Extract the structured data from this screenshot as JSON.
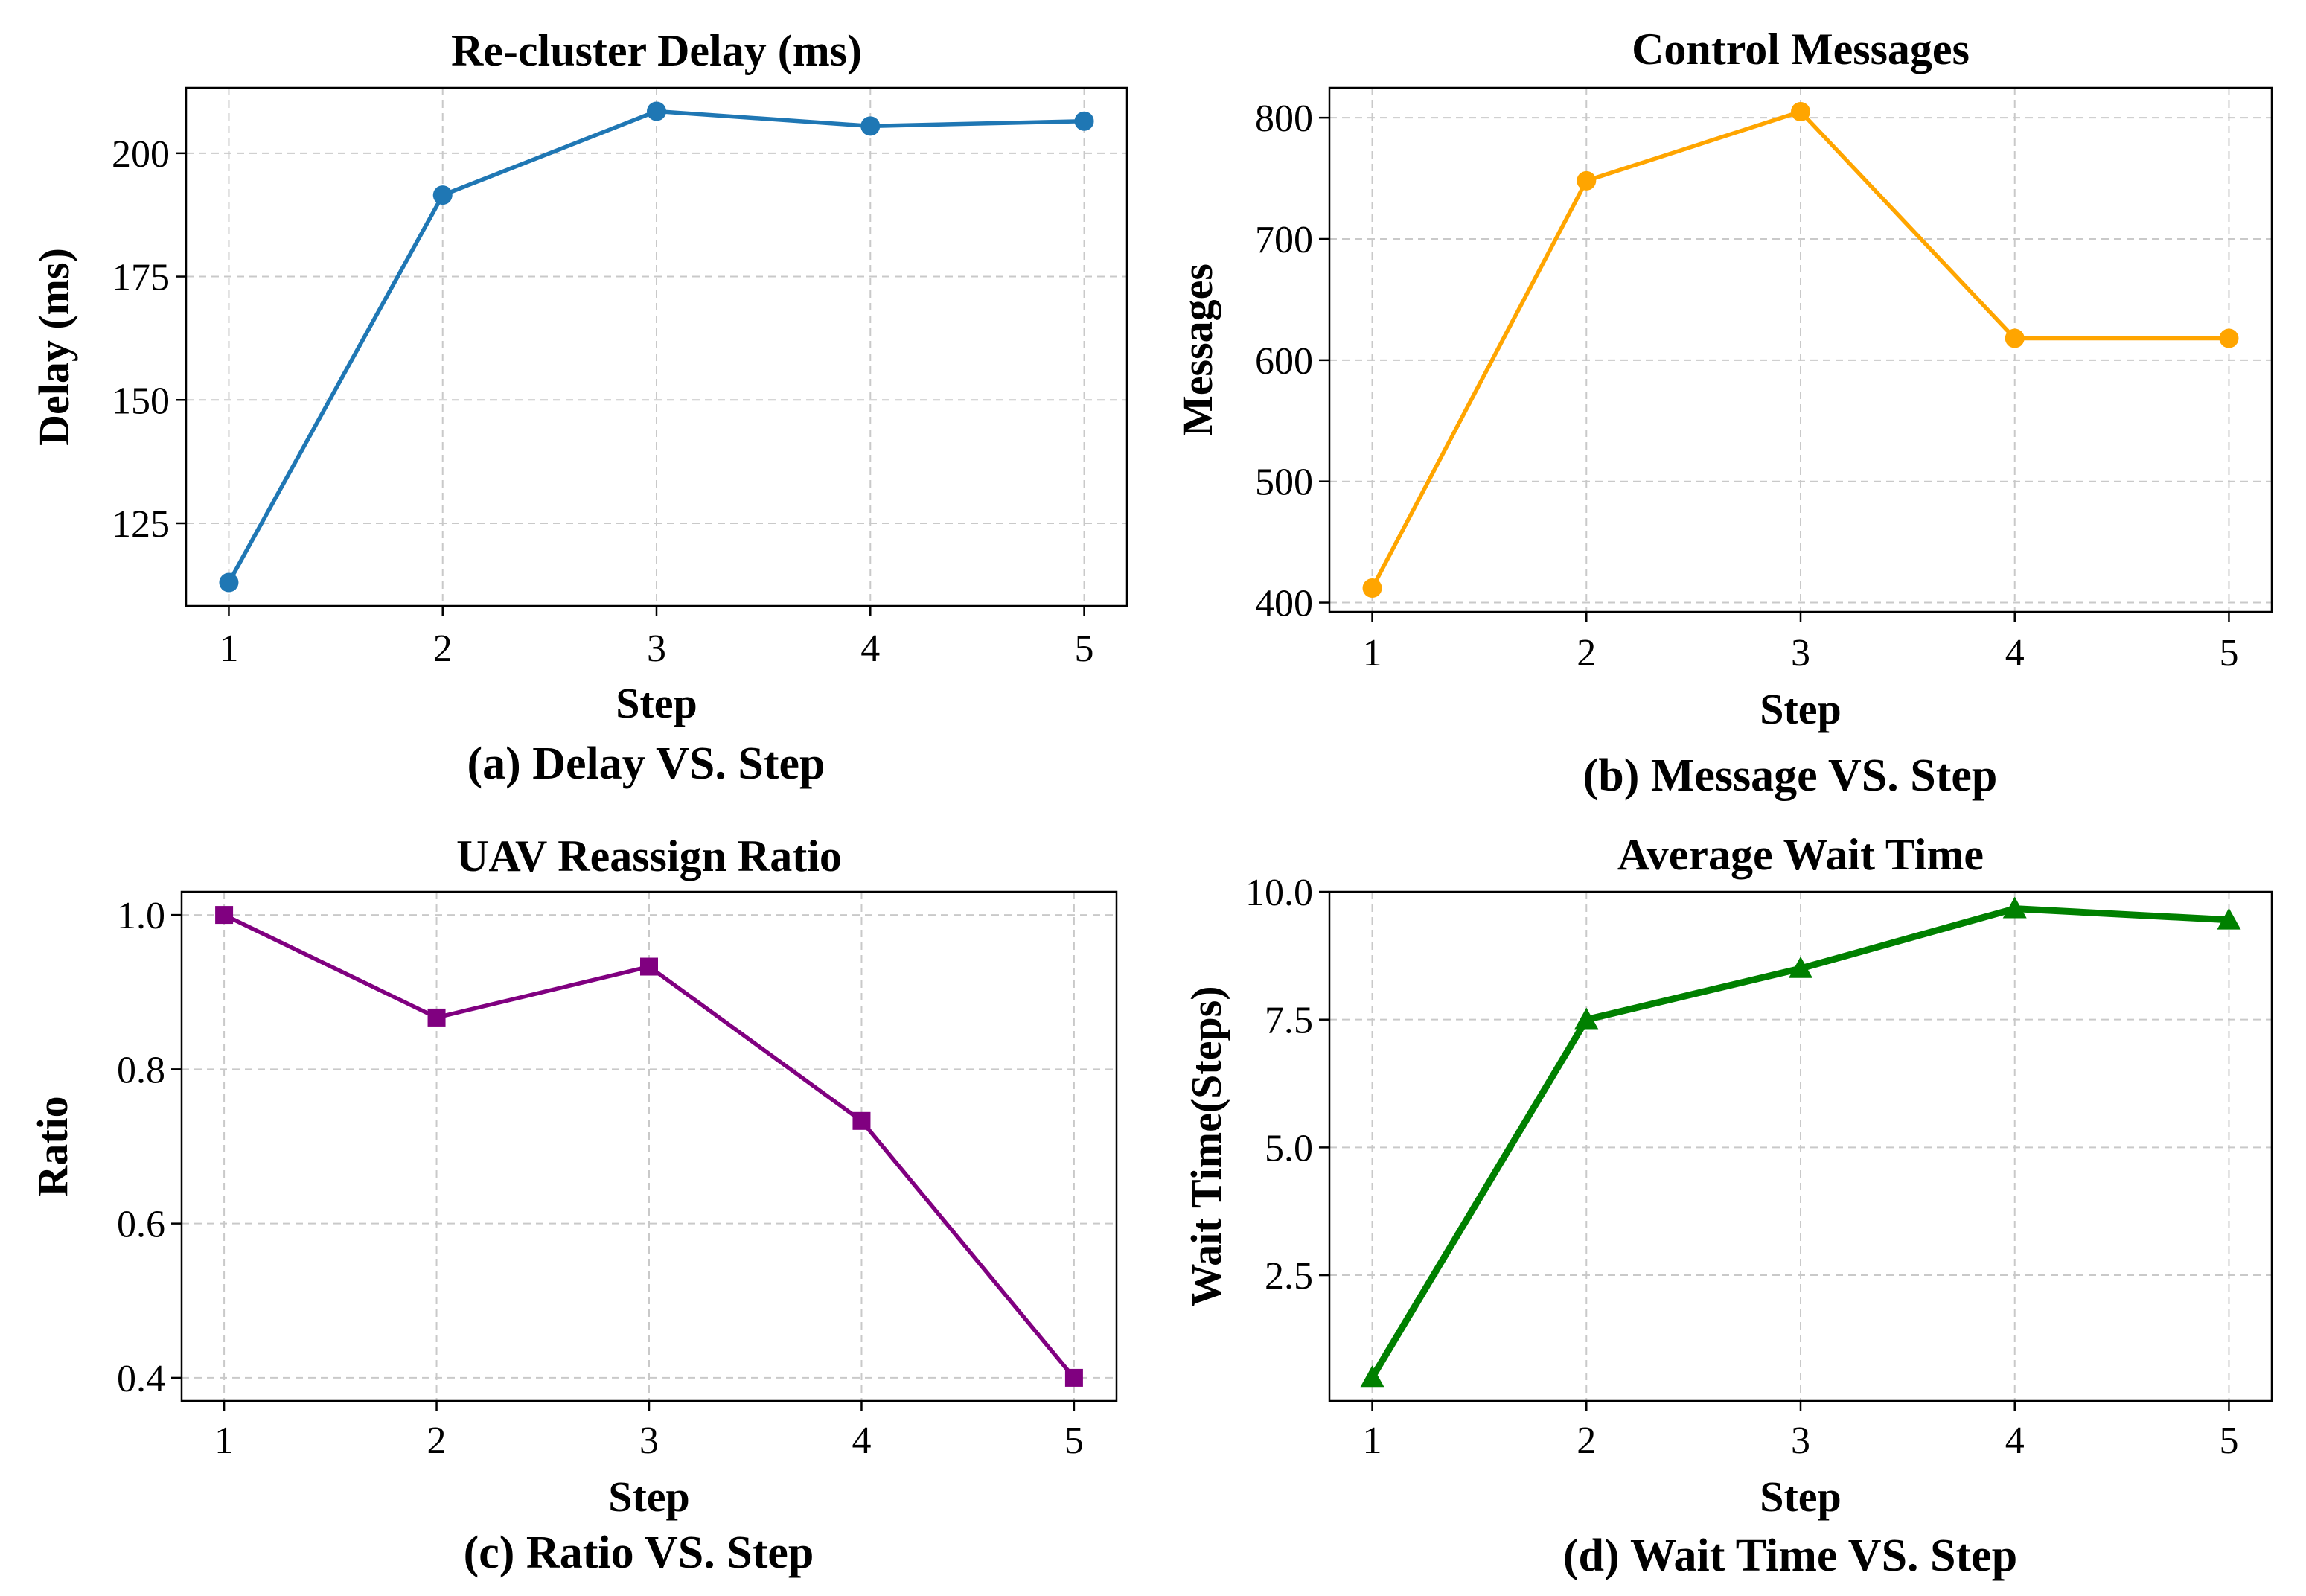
{
  "chart_data": [
    {
      "type": "line",
      "title": "Re-cluster Delay (ms)",
      "caption": "(a) Delay VS. Step",
      "xlabel": "Step",
      "ylabel": "Delay (ms)",
      "x": [
        1,
        2,
        3,
        4,
        5
      ],
      "series": [
        {
          "name": "Delay",
          "values": [
            113,
            191.5,
            208.5,
            205.5,
            206.5
          ],
          "color": "#1f77b4",
          "marker": "circle"
        }
      ],
      "xticks": [
        1,
        2,
        3,
        4,
        5
      ],
      "xtick_labels": [
        "1",
        "2",
        "3",
        "4",
        "5"
      ],
      "yticks": [
        125,
        150,
        175,
        200
      ],
      "ytick_labels": [
        "125",
        "150",
        "175",
        "200"
      ],
      "xlim": [
        0.8,
        5.2
      ],
      "ylim": [
        108.25,
        213.25
      ],
      "grid": true
    },
    {
      "type": "line",
      "title": "Control Messages",
      "caption": "(b) Message VS. Step",
      "xlabel": "Step",
      "ylabel": "Messages",
      "x": [
        1,
        2,
        3,
        4,
        5
      ],
      "series": [
        {
          "name": "Messages",
          "values": [
            412,
            748,
            805,
            618,
            618
          ],
          "color": "#ffa500",
          "marker": "circle"
        }
      ],
      "xticks": [
        1,
        2,
        3,
        4,
        5
      ],
      "xtick_labels": [
        "1",
        "2",
        "3",
        "4",
        "5"
      ],
      "yticks": [
        400,
        500,
        600,
        700,
        800
      ],
      "ytick_labels": [
        "400",
        "500",
        "600",
        "700",
        "800"
      ],
      "xlim": [
        0.8,
        5.2
      ],
      "ylim": [
        392.35,
        824.65
      ],
      "grid": true
    },
    {
      "type": "line",
      "title": "UAV Reassign Ratio",
      "caption": "(c) Ratio VS. Step",
      "xlabel": "Step",
      "ylabel": "Ratio",
      "x": [
        1,
        2,
        3,
        4,
        5
      ],
      "series": [
        {
          "name": "Ratio",
          "values": [
            1.0,
            0.867,
            0.933,
            0.733,
            0.4
          ],
          "color": "#800080",
          "marker": "square"
        }
      ],
      "xticks": [
        1,
        2,
        3,
        4,
        5
      ],
      "xtick_labels": [
        "1",
        "2",
        "3",
        "4",
        "5"
      ],
      "yticks": [
        0.4,
        0.6,
        0.8,
        1.0
      ],
      "ytick_labels": [
        "0.4",
        "0.6",
        "0.8",
        "1.0"
      ],
      "xlim": [
        0.8,
        5.2
      ],
      "ylim": [
        0.37,
        1.03
      ],
      "grid": true
    },
    {
      "type": "line",
      "title": "Average Wait Time",
      "caption": "(d) Wait Time VS. Step",
      "xlabel": "Step",
      "ylabel": "Wait Time(Steps)",
      "x": [
        1,
        2,
        3,
        4,
        5
      ],
      "series": [
        {
          "name": "Wait Time",
          "values": [
            0.5,
            7.5,
            8.5,
            9.67,
            9.45
          ],
          "color": "#008000",
          "marker": "triangle"
        }
      ],
      "xticks": [
        1,
        2,
        3,
        4,
        5
      ],
      "xtick_labels": [
        "1",
        "2",
        "3",
        "4",
        "5"
      ],
      "yticks": [
        2.5,
        5.0,
        7.5,
        10.0
      ],
      "ytick_labels": [
        "2.5",
        "5.0",
        "7.5",
        "10.0"
      ],
      "xlim": [
        0.8,
        5.2
      ],
      "ylim": [
        0.04,
        10.0
      ],
      "grid": true
    }
  ]
}
